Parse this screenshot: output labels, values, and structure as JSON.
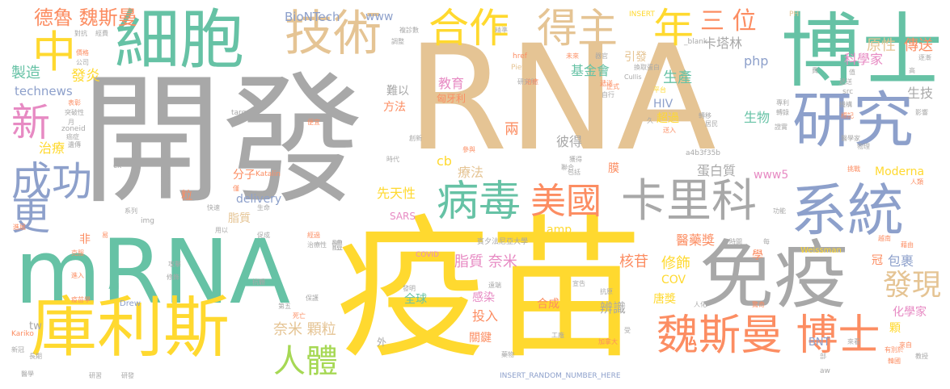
{
  "background_color": "#ffffff",
  "palette": {
    "gray": "#a8a8a8",
    "tan": "#e5c494",
    "green": "#66c2a5",
    "yellow": "#ffd92f",
    "blue": "#8da0cb",
    "orange": "#fc8d62",
    "pink": "#e78ac3",
    "lime": "#a6d854"
  },
  "words": {
    "w_rna": "RNA",
    "w_kaifa": "開發",
    "w_yimiao": "疫苗",
    "w_mrna": "mRNA",
    "w_boshi": "博士",
    "w_xibao": "細胞",
    "w_mianyi": "免疫",
    "w_kulisi": "庫利斯",
    "w_yanjiu": "研究",
    "w_jishu": "技術",
    "w_xitong": "系統",
    "w_weisiman_boshi": "魏斯曼 博士",
    "w_kalike": "卡里科",
    "w_bingdu": "病毒",
    "w_meiguo": "美國",
    "w_hezuo": "合作",
    "w_dezhu": "得主",
    "w_chenggong": "成功",
    "w_zhong": "中",
    "w_xin": "新",
    "w_geng": "更",
    "w_nian": "年",
    "w_sanwei": "三 位",
    "w_rent": "人體",
    "w_faxian": "發現",
    "w_biontech": "BioNTech",
    "w_delu_weisiman": "德魯 魏斯曼",
    "w_www": "www",
    "w_katalin": "卡塔林",
    "w_yuanxing": "原性",
    "w_chuansong": "傳送",
    "w_zhizao": "製造",
    "w_fayan": "發炎",
    "w_technews": "technews",
    "w_jijinhui": "基金會",
    "w_yinfa": "引發",
    "w_php": "php",
    "w_kexuejia": "科學家",
    "w_shengji": "生技",
    "w_shengchan": "生產",
    "w_jiaoyu": "教育",
    "w_xiongyali": "匈牙利",
    "w_nanyi": "難以",
    "w_fangfa": "方法",
    "w_hiv": "HIV",
    "w_chaoyue": "超過",
    "w_shengwu": "生物",
    "w_liang": "兩",
    "w_bide": "彼得",
    "w_zhiliao": "治療",
    "w_cb": "cb",
    "w_liaofa": "療法",
    "w_mo": "膜",
    "w_danbaizhi": "蛋白質",
    "w_www5": "www5",
    "w_moderna": "Moderna",
    "w_fenzi": "分子",
    "w_li": "粒",
    "w_delivery": "delivery",
    "w_xiantianxing": "先天性",
    "w_zhizhi1": "脂質",
    "w_sars": "SARS",
    "w_fei": "非",
    "w_amp": "amp",
    "w_tilanjiang": "醫藥獎",
    "w_ti": "體",
    "w_zhizhi_nami": "脂質 奈米",
    "w_hegan": "核苷",
    "w_xiushi": "修飾",
    "w_guan": "冠",
    "w_baoguo": "包裹",
    "w_xue": "學",
    "w_jie": "屆",
    "w_cov": "COV",
    "w_ganran": "感染",
    "w_hecheng": "合成",
    "w_bianshi": "辨識",
    "w_tangjiang": "唐獎",
    "w_quanqiu": "全球",
    "w_touru": "投入",
    "w_huaxuejia": "化學家",
    "w_keli": "顆",
    "w_nami_keli": "奈米 顆粒",
    "w_guanjian": "關鍵",
    "w_tw": "tw",
    "w_bnt": "BNT",
    "w_wai": "外",
    "w_binxi": "賓夕法尼亞大學",
    "w_weissman": "Weissman",
    "w_insert": "INSERT_RANDOM_NUMBER_HERE",
    "w_a4b3": "a4b3f35b",
    "w_insert2": "INSERT",
    "w_pieter": "Pieter",
    "w_href": "href",
    "w_blank": "_blank",
    "w_drew": "Drew",
    "w_covid": "COVID",
    "w_katalin_en": "Katalin",
    "w_zoneid": "zoneid",
    "w_target": "target",
    "w_img": "img",
    "w_src": "src",
    "w_ph": "PH",
    "w_kariko": "Kariko",
    "w_ck": "ck",
    "w_aw": "aw",
    "s_1": "對抗",
    "s_2": "經費",
    "s_3": "複診數",
    "s_4": "精準",
    "s_5": "調整",
    "s_6": "價格",
    "s_7": "公司",
    "s_8": "表彰",
    "s_9": "突破性",
    "s_10": "月",
    "s_11": "癌症",
    "s_12": "遺傳",
    "s_13": "研究所",
    "s_14": "未來",
    "s_15": "器官",
    "s_16": "遞送",
    "s_17": "正式",
    "s_18": "自行",
    "s_19": "久",
    "s_20": "轉移",
    "s_21": "居民",
    "s_22": "證實",
    "s_23": "送入",
    "s_24": "醫學家",
    "s_25": "標記",
    "s_26": "物理",
    "s_27": "挑戰",
    "s_28": "人類",
    "s_29": "時間",
    "s_30": "每",
    "s_31": "越南",
    "s_32": "宣告",
    "s_33": "抗原",
    "s_34": "人化",
    "s_35": "驚奇",
    "s_36": "工廠",
    "s_37": "加拿大",
    "s_38": "藥物",
    "s_39": "受",
    "s_40": "來看",
    "s_41": "教授",
    "s_42": "研發",
    "s_43": "死亡",
    "s_44": "第五",
    "s_45": "保護",
    "s_46": "治療性",
    "s_47": "經過",
    "s_48": "抗體",
    "s_49": "修飾",
    "s_50": "攻擊",
    "s_51": "克服",
    "s_52": "進入",
    "s_53": "系列",
    "s_54": "快速",
    "s_55": "用以",
    "s_56": "生命",
    "s_57": "創新",
    "s_58": "參與",
    "s_59": "時代",
    "s_60": "便宜",
    "s_61": "研習",
    "s_62": "醫學",
    "s_63": "有別於",
    "s_64": "新冠",
    "s_65": "長期",
    "s_66": "疫苗學",
    "s_67": "遠端",
    "s_68": "包括",
    "s_69": "獲得",
    "s_70": "治癒",
    "s_71": "聯合",
    "s_72": "平台",
    "s_73": "蛋白",
    "s_74": "高",
    "s_75": "逐漸",
    "s_76": "值",
    "s_77": "遞送",
    "s_78": "發明",
    "s_79": "促成",
    "s_80": "易",
    "s_81": "僅",
    "s_82": "進展",
    "s_83": "功能",
    "s_84": "影響",
    "s_85": "換取",
    "s_86": "Cullis",
    "s_87": "轉錄",
    "s_88": "專利",
    "s_89": "費",
    "s_90": "部",
    "s_91": "韓國",
    "s_92": "藉由",
    "s_93": "來自",
    "s_94": "機構"
  }
}
